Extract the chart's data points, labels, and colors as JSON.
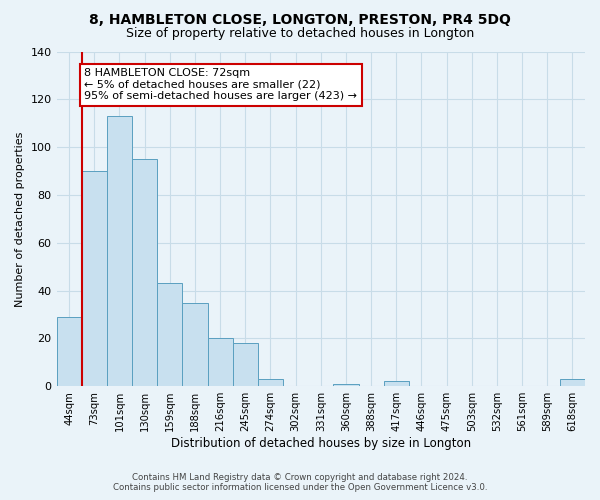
{
  "title1": "8, HAMBLETON CLOSE, LONGTON, PRESTON, PR4 5DQ",
  "title2": "Size of property relative to detached houses in Longton",
  "xlabel": "Distribution of detached houses by size in Longton",
  "ylabel": "Number of detached properties",
  "bar_labels": [
    "44sqm",
    "73sqm",
    "101sqm",
    "130sqm",
    "159sqm",
    "188sqm",
    "216sqm",
    "245sqm",
    "274sqm",
    "302sqm",
    "331sqm",
    "360sqm",
    "388sqm",
    "417sqm",
    "446sqm",
    "475sqm",
    "503sqm",
    "532sqm",
    "561sqm",
    "589sqm",
    "618sqm"
  ],
  "bar_values": [
    29,
    90,
    113,
    95,
    43,
    35,
    20,
    18,
    3,
    0,
    0,
    1,
    0,
    2,
    0,
    0,
    0,
    0,
    0,
    0,
    3
  ],
  "bar_color": "#c8e0ef",
  "bar_edge_color": "#5a9fc0",
  "ylim": [
    0,
    140
  ],
  "yticks": [
    0,
    20,
    40,
    60,
    80,
    100,
    120,
    140
  ],
  "annotation_title": "8 HAMBLETON CLOSE: 72sqm",
  "annotation_line1": "← 5% of detached houses are smaller (22)",
  "annotation_line2": "95% of semi-detached houses are larger (423) →",
  "annotation_box_color": "#ffffff",
  "annotation_box_edge": "#cc0000",
  "marker_color": "#cc0000",
  "footer1": "Contains HM Land Registry data © Crown copyright and database right 2024.",
  "footer2": "Contains public sector information licensed under the Open Government Licence v3.0.",
  "grid_color": "#c8dce8",
  "background_color": "#eaf3f9"
}
